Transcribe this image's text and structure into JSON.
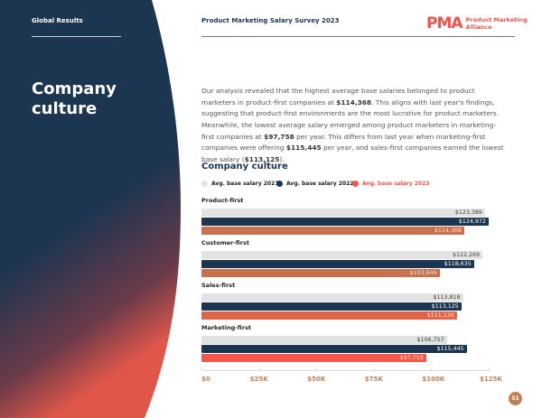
{
  "header": {
    "section": "Global Results",
    "survey": "Product Marketing Salary Survey 2023",
    "logo_mark": "PMA",
    "logo_text_1": "Product Marketing",
    "logo_text_2": "Alliance"
  },
  "heading": {
    "line1": "Company",
    "line2": "culture"
  },
  "paragraphs": [
    {
      "t1": "Our analysis revealed that the highest average base salaries belonged to product marketers in product-first companies at ",
      "b1": "$114,368",
      "t2": ". This aligns with last year's findings, suggesting that product-first environments are the most lucrative for product marketers."
    },
    {
      "t1": "Meanwhile, the lowest average salary emerged among product marketers in marketing-first companies at ",
      "b1": "$97,758",
      "t2": " per year. This differs from last year when marketing-first companies were offering ",
      "b2": "$115,445",
      "t3": " per year, and sales-first companies earned the lowest base salary (",
      "b3": "$113,125",
      "t4": ")."
    }
  ],
  "page_number": "51",
  "chart_data": {
    "type": "bar",
    "title": "Company culture",
    "xlim": [
      0,
      125000
    ],
    "ticks": [
      "$0",
      "$25K",
      "$50K",
      "$75K",
      "$100K",
      "$125K"
    ],
    "legend": [
      {
        "name": "Avg. base salary 2021",
        "color": "#e3e3e3",
        "text": "#222"
      },
      {
        "name": "Avg. base salary 2022",
        "color": "#1c3550",
        "text": "#222"
      },
      {
        "name": "Avg. base salary 2023",
        "color": "#f5574a",
        "text": "#f5574a"
      }
    ],
    "categories": [
      "Product-first",
      "Customer-first",
      "Sales-first",
      "Marketing-first"
    ],
    "series": [
      {
        "name": "Avg. base salary 2021",
        "values": [
          123389,
          122269,
          113818,
          106757
        ],
        "labels": [
          "$123,389",
          "$122,269",
          "$113,818",
          "$106,757"
        ],
        "colors": [
          "#e3e3e3",
          "#e3e3e3",
          "#e3e3e3",
          "#dfe3e0"
        ],
        "text": "#444"
      },
      {
        "name": "Avg. base salary 2022",
        "values": [
          124972,
          118635,
          113125,
          115445
        ],
        "labels": [
          "$124,972",
          "$118,635",
          "$113,125",
          "$115,445"
        ],
        "colors": [
          "#1c3550",
          "#1c3550",
          "#1c3550",
          "#1c3550"
        ],
        "text": "#fff"
      },
      {
        "name": "Avg. base salary 2023",
        "values": [
          114368,
          103646,
          111136,
          97758
        ],
        "labels": [
          "$114,368",
          "$103,646",
          "$111,136",
          "$97,758"
        ],
        "colors": [
          "#c9714c",
          "#c9714c",
          "#e0644a",
          "#f5574a"
        ],
        "text": "#fde0d0"
      }
    ]
  }
}
